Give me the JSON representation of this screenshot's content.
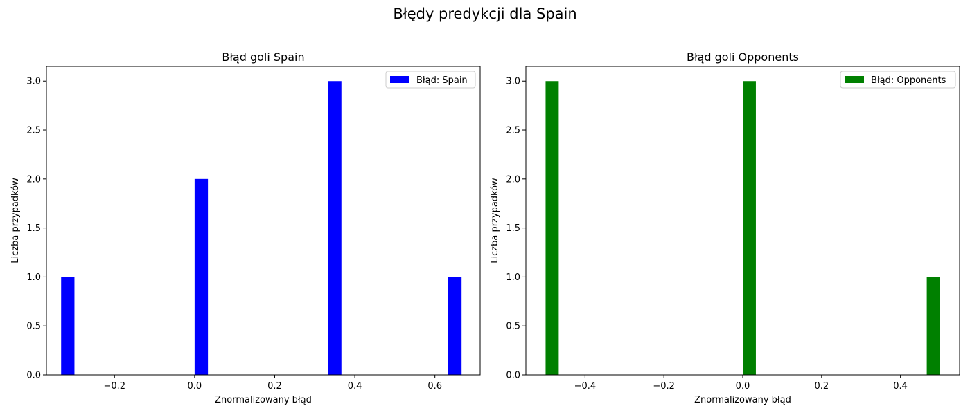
{
  "figure": {
    "suptitle": "Błędy predykcji dla Spain"
  },
  "chart_data": [
    {
      "type": "bar",
      "title": "Błąd goli Spain",
      "xlabel": "Znormalizowany błąd",
      "ylabel": "Liczba przypadków",
      "xlim": [
        -0.37,
        0.713
      ],
      "ylim": [
        0,
        3.15
      ],
      "xticks": [
        -0.2,
        0.0,
        0.2,
        0.4,
        0.6
      ],
      "xtick_labels": [
        "−0.2",
        "0.0",
        "0.2",
        "0.4",
        "0.6"
      ],
      "yticks": [
        0.0,
        0.5,
        1.0,
        1.5,
        2.0,
        2.5,
        3.0
      ],
      "ytick_labels": [
        "0.0",
        "0.5",
        "1.0",
        "1.5",
        "2.0",
        "2.5",
        "3.0"
      ],
      "bin_width": 0.0333,
      "bins": [
        {
          "left": -0.3333,
          "value": 1
        },
        {
          "left": 0.0,
          "value": 2
        },
        {
          "left": 0.3333,
          "value": 3
        },
        {
          "left": 0.6333,
          "value": 1
        }
      ],
      "legend": {
        "label": "Błąd: Spain",
        "placement": "top-right"
      },
      "color": "#0000ff",
      "grid": false
    },
    {
      "type": "bar",
      "title": "Błąd goli Opponents",
      "xlabel": "Znormalizowany błąd",
      "ylabel": "Liczba przypadków",
      "xlim": [
        -0.55,
        0.55
      ],
      "ylim": [
        0,
        3.15
      ],
      "xticks": [
        -0.4,
        -0.2,
        0.0,
        0.2,
        0.4
      ],
      "xtick_labels": [
        "−0.4",
        "−0.2",
        "0.0",
        "0.2",
        "0.4"
      ],
      "yticks": [
        0.0,
        0.5,
        1.0,
        1.5,
        2.0,
        2.5,
        3.0
      ],
      "ytick_labels": [
        "0.0",
        "0.5",
        "1.0",
        "1.5",
        "2.0",
        "2.5",
        "3.0"
      ],
      "bin_width": 0.0333,
      "bins": [
        {
          "left": -0.5,
          "value": 3
        },
        {
          "left": 0.0,
          "value": 3
        },
        {
          "left": 0.4667,
          "value": 1
        }
      ],
      "legend": {
        "label": "Błąd: Opponents",
        "placement": "top-right"
      },
      "color": "#008000",
      "grid": false
    }
  ]
}
